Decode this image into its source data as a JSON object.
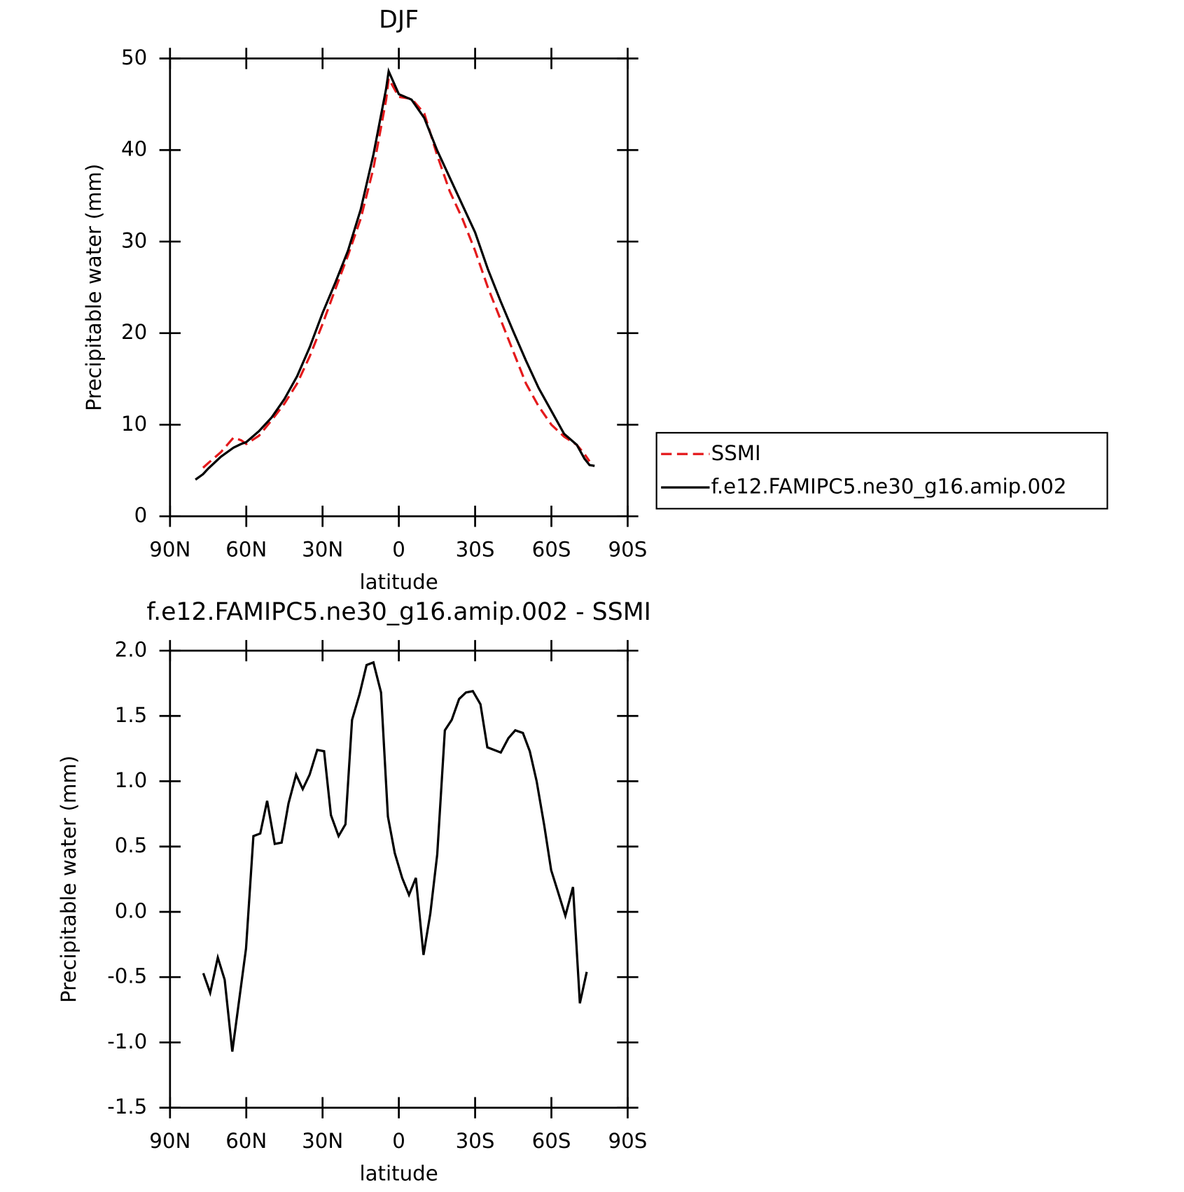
{
  "chart_data": [
    {
      "type": "line",
      "title": "DJF",
      "xlabel": "latitude",
      "ylabel": "Precipitable water (mm)",
      "x": [
        80,
        77,
        75,
        70,
        65,
        62,
        60,
        55,
        50,
        45,
        40,
        35,
        30,
        25,
        20,
        15,
        10,
        5,
        4,
        0,
        -5,
        -10,
        -15,
        -20,
        -25,
        -30,
        -35,
        -40,
        -45,
        -50,
        -55,
        -60,
        -65,
        -70,
        -73,
        -75,
        -77
      ],
      "series": [
        {
          "name": "SSMI",
          "color": "#e41a1c",
          "dash": true,
          "values": [
            null,
            5.3,
            5.8,
            7.0,
            8.6,
            8.3,
            7.9,
            8.8,
            10.5,
            12.3,
            14.5,
            17.5,
            21.0,
            24.8,
            28.5,
            32.5,
            38.0,
            45.5,
            47.8,
            45.8,
            45.6,
            44.0,
            39.5,
            35.5,
            32.5,
            29.0,
            25.0,
            21.5,
            18.0,
            14.5,
            12.0,
            10.0,
            8.7,
            7.8,
            6.8,
            6.0,
            null
          ]
        },
        {
          "name": "f.e12.FAMIPC5.ne30_g16.amip.002",
          "color": "#000000",
          "dash": false,
          "values": [
            4.0,
            4.6,
            5.2,
            6.5,
            7.5,
            7.9,
            8.1,
            9.3,
            10.8,
            12.8,
            15.3,
            18.5,
            22.2,
            25.5,
            29.0,
            33.5,
            39.5,
            46.7,
            48.6,
            46.1,
            45.5,
            43.5,
            40.0,
            37.0,
            34.0,
            31.0,
            27.0,
            23.5,
            20.2,
            17.0,
            14.0,
            11.5,
            9.0,
            7.8,
            6.3,
            5.6,
            5.5
          ]
        }
      ],
      "xlim": [
        90,
        -90
      ],
      "xticks": [
        {
          "value": 90,
          "label": "90N"
        },
        {
          "value": 60,
          "label": "60N"
        },
        {
          "value": 30,
          "label": "30N"
        },
        0,
        {
          "value": -30,
          "label": "30S"
        },
        {
          "value": -60,
          "label": "60S"
        },
        {
          "value": -90,
          "label": "90S"
        }
      ],
      "ylim": [
        0,
        50
      ],
      "yticks": [
        0,
        10,
        20,
        30,
        40,
        50
      ],
      "legend": "right"
    },
    {
      "type": "line",
      "title": "f.e12.FAMIPC5.ne30_g16.amip.002 - SSMI",
      "xlabel": "latitude",
      "ylabel": "Precipitable water (mm)",
      "x": [
        76.9,
        74.2,
        71.2,
        68.5,
        65.5,
        60.1,
        57.2,
        54.5,
        51.8,
        48.8,
        46.1,
        43.4,
        40.4,
        37.8,
        35.1,
        32.1,
        29.4,
        26.7,
        23.7,
        21.0,
        18.4,
        15.4,
        12.7,
        10.0,
        7.0,
        4.3,
        1.6,
        -1.3,
        -4.0,
        -6.7,
        -9.7,
        -12.4,
        -15.1,
        -18.1,
        -20.8,
        -23.7,
        -26.4,
        -29.1,
        -32.1,
        -34.8,
        -40.1,
        -43.1,
        -45.8,
        -48.8,
        -51.5,
        -54.2,
        -57.2,
        -59.9,
        -62.8,
        -65.5,
        -68.5,
        -71.2,
        -73.9
      ],
      "values": [
        -0.47,
        -0.62,
        -0.35,
        -0.52,
        -1.07,
        -0.28,
        0.58,
        0.6,
        0.85,
        0.52,
        0.53,
        0.83,
        1.05,
        0.94,
        1.05,
        1.24,
        1.23,
        0.74,
        0.58,
        0.67,
        1.47,
        1.67,
        1.89,
        1.91,
        1.68,
        0.73,
        0.45,
        0.26,
        0.13,
        0.26,
        -0.33,
        -0.01,
        0.44,
        1.39,
        1.47,
        1.63,
        1.68,
        1.69,
        1.59,
        1.26,
        1.22,
        1.33,
        1.39,
        1.37,
        1.23,
        1.0,
        0.66,
        0.32,
        0.14,
        -0.03,
        0.19,
        -0.7,
        -0.46
      ],
      "color": "#000000",
      "xlim": [
        90,
        -90
      ],
      "xticks": [
        {
          "value": 90,
          "label": "90N"
        },
        {
          "value": 60,
          "label": "60N"
        },
        {
          "value": 30,
          "label": "30N"
        },
        0,
        {
          "value": -30,
          "label": "30S"
        },
        {
          "value": -60,
          "label": "60S"
        },
        {
          "value": -90,
          "label": "90S"
        }
      ],
      "ylim": [
        -1.5,
        2.0
      ],
      "yticks": [
        -1.5,
        {
          "value": -1.0,
          "label": "-1.0"
        },
        -0.5,
        {
          "value": 0.0,
          "label": "0.0"
        },
        0.5,
        {
          "value": 1.0,
          "label": "1.0"
        },
        1.5,
        {
          "value": 2.0,
          "label": "2.0"
        }
      ]
    }
  ]
}
